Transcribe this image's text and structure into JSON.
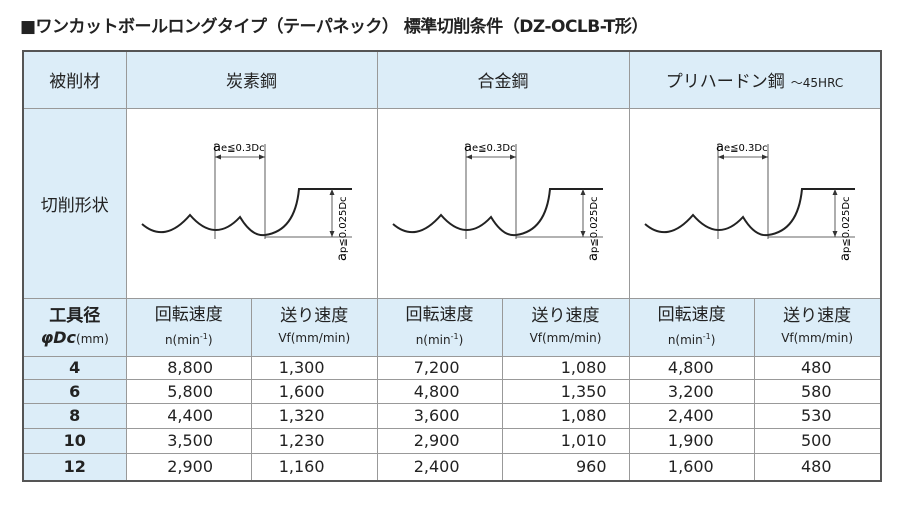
{
  "title": "■ワンカットボールロングタイプ（テーパネック） 標準切削条件（DZ-OCLB-T形）",
  "table": {
    "header": {
      "material": "被削材",
      "groups": [
        {
          "name": "炭素鋼"
        },
        {
          "name": "合金鋼"
        },
        {
          "name": "プリハードン鋼",
          "note": "～45HRC"
        }
      ]
    },
    "shape": {
      "label": "切削形状",
      "diagrams": [
        {
          "ae": [
            "a",
            "e≦0.3Dc"
          ],
          "ap": [
            "a",
            "p≦0.025Dc"
          ]
        },
        {
          "ae": [
            "a",
            "e≦0.3Dc"
          ],
          "ap": [
            "a",
            "p≦0.025Dc"
          ]
        },
        {
          "ae": [
            "a",
            "e≦0.3Dc"
          ],
          "ap": [
            "a",
            "p≦0.025Dc"
          ]
        }
      ]
    },
    "subheader": {
      "dia": [
        "工具径",
        "φDc",
        "(mm)"
      ],
      "columns": [
        {
          "name": "回転速度",
          "unit": [
            "n(min",
            "-1",
            ")"
          ]
        },
        {
          "name": "送り速度",
          "unit": [
            "Vf(mm/min)"
          ]
        },
        {
          "name": "回転速度",
          "unit": [
            "n(min",
            "-1",
            ")"
          ]
        },
        {
          "name": "送り速度",
          "unit": [
            "Vf(mm/min)"
          ]
        },
        {
          "name": "回転速度",
          "unit": [
            "n(min",
            "-1",
            ")"
          ]
        },
        {
          "name": "送り速度",
          "unit": [
            "Vf(mm/min)"
          ]
        }
      ]
    },
    "rows": [
      [
        "4",
        "8,800",
        "1,300",
        "7,200",
        "1,080",
        "4,800",
        "480"
      ],
      [
        "6",
        "5,800",
        "1,600",
        "4,800",
        "1,350",
        "3,200",
        "580"
      ],
      [
        "8",
        "4,400",
        "1,320",
        "3,600",
        "1,080",
        "2,400",
        "530"
      ],
      [
        "10",
        "3,500",
        "1,230",
        "2,900",
        "1,010",
        "1,900",
        "500"
      ],
      [
        "12",
        "2,900",
        "1,160",
        "2,400",
        "960",
        "1,600",
        "480"
      ]
    ]
  }
}
